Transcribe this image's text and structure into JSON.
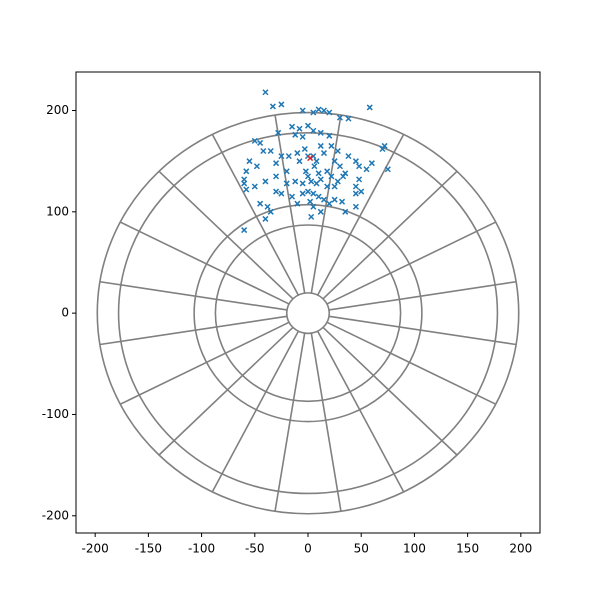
{
  "chart_data": {
    "type": "scatter",
    "xlim": [
      -218,
      218
    ],
    "ylim": [
      -217,
      238
    ],
    "xticks": [
      -200,
      -150,
      -100,
      -50,
      0,
      50,
      100,
      150,
      200
    ],
    "yticks": [
      -200,
      -100,
      0,
      100,
      200
    ],
    "series": [
      {
        "color": "#1f77b4",
        "x": [
          -40,
          -33,
          -25,
          -5,
          10,
          5,
          15,
          20,
          30,
          38,
          58,
          -28,
          -15,
          -8,
          0,
          5,
          12,
          20,
          -5,
          -12,
          -50,
          -45,
          -35,
          -25,
          -18,
          -10,
          -3,
          0,
          5,
          8,
          15,
          22,
          25,
          30,
          35,
          38,
          45,
          48,
          55,
          60,
          70,
          72,
          75,
          -55,
          -58,
          -60,
          -60,
          -58,
          -50,
          -40,
          -30,
          -20,
          -12,
          -5,
          0,
          3,
          8,
          12,
          18,
          22,
          28,
          33,
          -45,
          -38,
          -35,
          -40,
          -60,
          -30,
          -25,
          -15,
          -5,
          0,
          5,
          10,
          15,
          20,
          5,
          3,
          12,
          25,
          32,
          35,
          45,
          45,
          45,
          50,
          -2,
          6,
          10,
          -8,
          18,
          25,
          -20,
          -10,
          2,
          -30,
          48,
          12,
          28,
          -48,
          -42
        ],
        "y": [
          218,
          204,
          206,
          200,
          201,
          198,
          200,
          198,
          193,
          192,
          203,
          178,
          184,
          182,
          185,
          180,
          178,
          175,
          174,
          176,
          170,
          168,
          160,
          155,
          155,
          158,
          162,
          155,
          155,
          150,
          158,
          165,
          150,
          145,
          138,
          155,
          150,
          145,
          142,
          148,
          162,
          165,
          142,
          150,
          140,
          132,
          128,
          122,
          125,
          130,
          135,
          140,
          130,
          128,
          135,
          130,
          128,
          132,
          140,
          135,
          130,
          135,
          108,
          105,
          100,
          93,
          82,
          120,
          118,
          115,
          118,
          120,
          118,
          115,
          112,
          108,
          105,
          95,
          100,
          112,
          110,
          100,
          105,
          125,
          118,
          120,
          140,
          145,
          138,
          150,
          125,
          125,
          128,
          108,
          110,
          148,
          132,
          165,
          160,
          145,
          160
        ]
      },
      {
        "color": "#d62728",
        "x": [
          2
        ],
        "y": [
          153
        ]
      }
    ]
  }
}
